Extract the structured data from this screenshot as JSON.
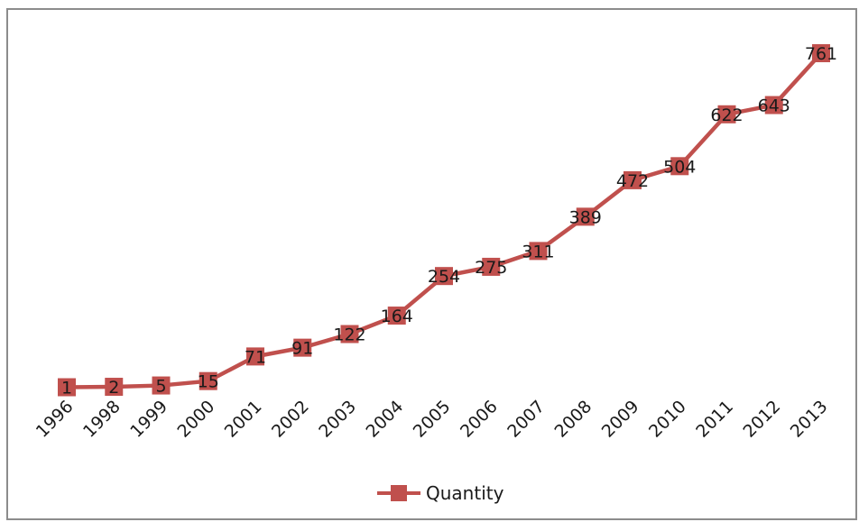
{
  "chart_data": {
    "type": "line",
    "title": "",
    "xlabel": "",
    "ylabel": "",
    "categories": [
      "1996",
      "1998",
      "1999",
      "2000",
      "2001",
      "2002",
      "2003",
      "2004",
      "2005",
      "2006",
      "2007",
      "2008",
      "2009",
      "2010",
      "2011",
      "2012",
      "2013"
    ],
    "series": [
      {
        "name": "Quantity",
        "values": [
          1,
          2,
          5,
          15,
          71,
          91,
          122,
          164,
          254,
          275,
          311,
          389,
          472,
          504,
          622,
          643,
          761
        ],
        "color": "#c0504d"
      }
    ],
    "ylim": [
      0,
      800
    ],
    "grid": false,
    "legend": "bottom",
    "data_labels": true
  }
}
